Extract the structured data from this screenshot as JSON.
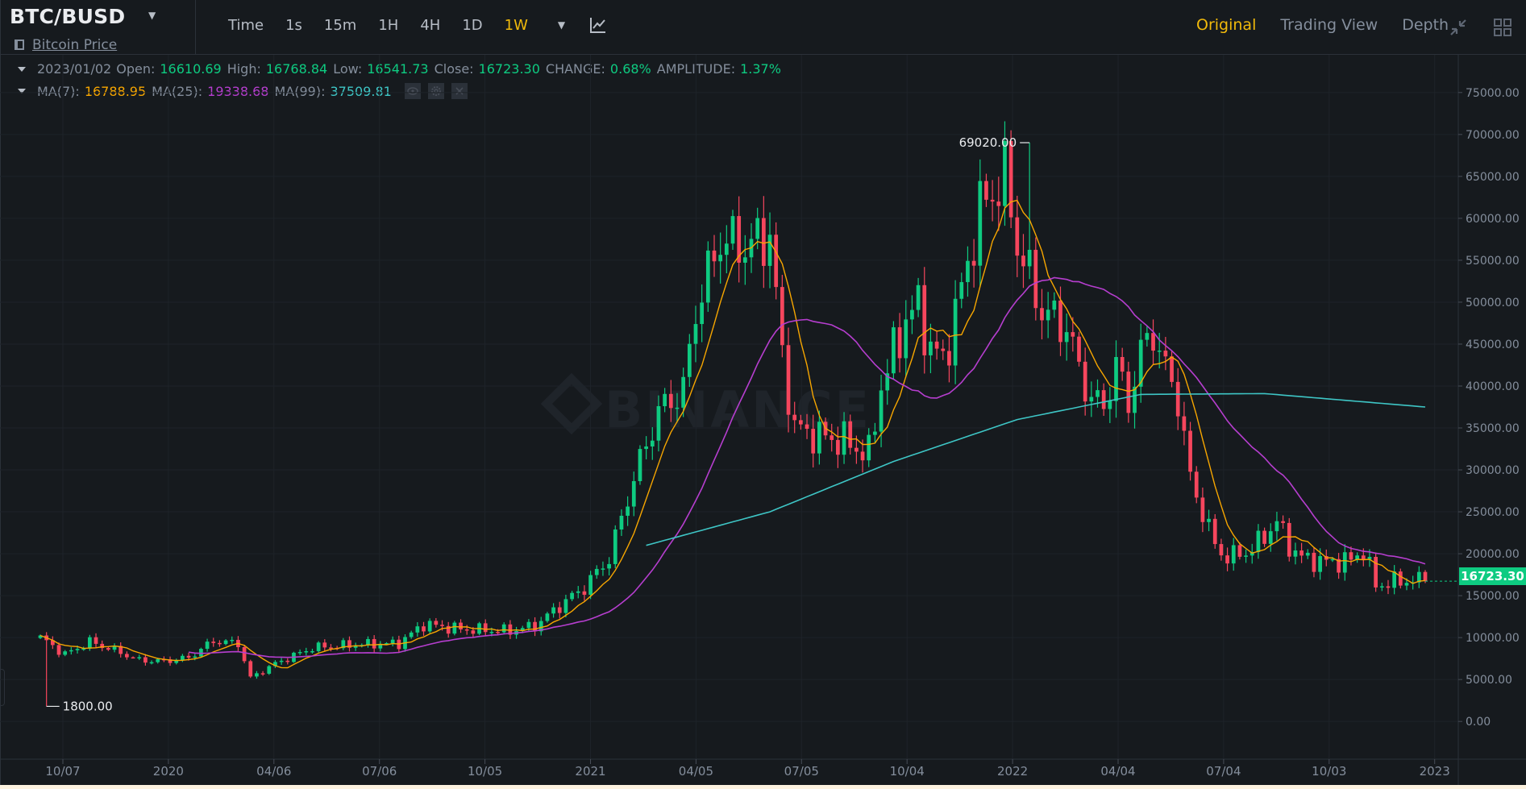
{
  "header": {
    "pair": "BTC/BUSD",
    "sub_link": "Bitcoin Price",
    "intervals": [
      "Time",
      "1s",
      "15m",
      "1H",
      "4H",
      "1D",
      "1W"
    ],
    "active_interval": "1W",
    "views": [
      "Original",
      "Trading View",
      "Depth"
    ],
    "active_view": "Original"
  },
  "ohlc": {
    "date": "2023/01/02",
    "open_label": "Open:",
    "open": "16610.69",
    "high_label": "High:",
    "high": "16768.84",
    "low_label": "Low:",
    "low": "16541.73",
    "close_label": "Close:",
    "close": "16723.30",
    "change_label": "CHANGE:",
    "change": "0.68%",
    "amplitude_label": "AMPLITUDE:",
    "amplitude": "1.37%"
  },
  "ma": {
    "ma7_label": "MA(7):",
    "ma7": "16788.95",
    "ma25_label": "MA(25):",
    "ma25": "19338.68",
    "ma99_label": "MA(99):",
    "ma99": "37509.81"
  },
  "watermark": "BINANCE",
  "last_price": "16723.30",
  "colors": {
    "up": "#0ecb81",
    "down": "#f6465d",
    "ma7": "#f7a600",
    "ma25": "#b63ecf",
    "ma99": "#3ec6c6",
    "accent": "#f0b90b"
  },
  "chart_data": {
    "type": "candlestick",
    "y_ticks": [
      "75000.00",
      "70000.00",
      "65000.00",
      "60000.00",
      "55000.00",
      "50000.00",
      "45000.00",
      "40000.00",
      "35000.00",
      "30000.00",
      "25000.00",
      "20000.00",
      "15000.00",
      "10000.00",
      "5000.00",
      "0.00"
    ],
    "ylim": [
      -4500,
      79500
    ],
    "x_ticks": [
      "10/07",
      "2020",
      "04/06",
      "07/06",
      "10/05",
      "2021",
      "04/05",
      "07/05",
      "10/04",
      "2022",
      "04/04",
      "07/04",
      "10/03",
      "2023"
    ],
    "max_annotation": "69020.00",
    "min_annotation": "1800.00",
    "anchors": [
      [
        0,
        10000
      ],
      [
        4,
        8000
      ],
      [
        8,
        9500
      ],
      [
        12,
        8500
      ],
      [
        16,
        7300
      ],
      [
        20,
        7200
      ],
      [
        24,
        7600
      ],
      [
        28,
        9600
      ],
      [
        32,
        9300
      ],
      [
        34,
        5200
      ],
      [
        38,
        6900
      ],
      [
        44,
        8800
      ],
      [
        52,
        9200
      ],
      [
        58,
        9300
      ],
      [
        62,
        11600
      ],
      [
        68,
        11000
      ],
      [
        76,
        10800
      ],
      [
        80,
        11400
      ],
      [
        84,
        13800
      ],
      [
        88,
        16000
      ],
      [
        92,
        19500
      ],
      [
        96,
        29000
      ],
      [
        100,
        37000
      ],
      [
        104,
        39500
      ],
      [
        106,
        49000
      ],
      [
        110,
        57500
      ],
      [
        114,
        56500
      ],
      [
        118,
        58000
      ],
      [
        120,
        43500
      ],
      [
        122,
        35000
      ],
      [
        126,
        34000
      ],
      [
        130,
        33500
      ],
      [
        134,
        31800
      ],
      [
        136,
        40000
      ],
      [
        140,
        48000
      ],
      [
        142,
        49500
      ],
      [
        144,
        44500
      ],
      [
        146,
        43000
      ],
      [
        148,
        48500
      ],
      [
        152,
        61000
      ],
      [
        156,
        65000
      ],
      [
        158,
        57000
      ],
      [
        162,
        49000
      ],
      [
        166,
        47000
      ],
      [
        168,
        42000
      ],
      [
        170,
        38500
      ],
      [
        172,
        37500
      ],
      [
        174,
        42500
      ],
      [
        176,
        38000
      ],
      [
        178,
        44000
      ],
      [
        180,
        46500
      ],
      [
        182,
        42000
      ],
      [
        184,
        38500
      ],
      [
        186,
        29000
      ],
      [
        190,
        21000
      ],
      [
        192,
        19500
      ],
      [
        196,
        20500
      ],
      [
        200,
        23800
      ],
      [
        202,
        21000
      ],
      [
        204,
        19500
      ],
      [
        208,
        19000
      ],
      [
        212,
        19200
      ],
      [
        214,
        20500
      ],
      [
        216,
        16200
      ],
      [
        220,
        16800
      ],
      [
        224,
        16700
      ]
    ],
    "ma99_start_index": 98,
    "ma99_anchors": [
      [
        0,
        21000
      ],
      [
        20,
        25000
      ],
      [
        40,
        31000
      ],
      [
        60,
        36000
      ],
      [
        80,
        39000
      ],
      [
        100,
        39100
      ],
      [
        126,
        37500
      ]
    ],
    "series": [
      {
        "name": "MA(7)",
        "color": "#f7a600"
      },
      {
        "name": "MA(25)",
        "color": "#b63ecf"
      },
      {
        "name": "MA(99)",
        "color": "#3ec6c6"
      }
    ]
  }
}
